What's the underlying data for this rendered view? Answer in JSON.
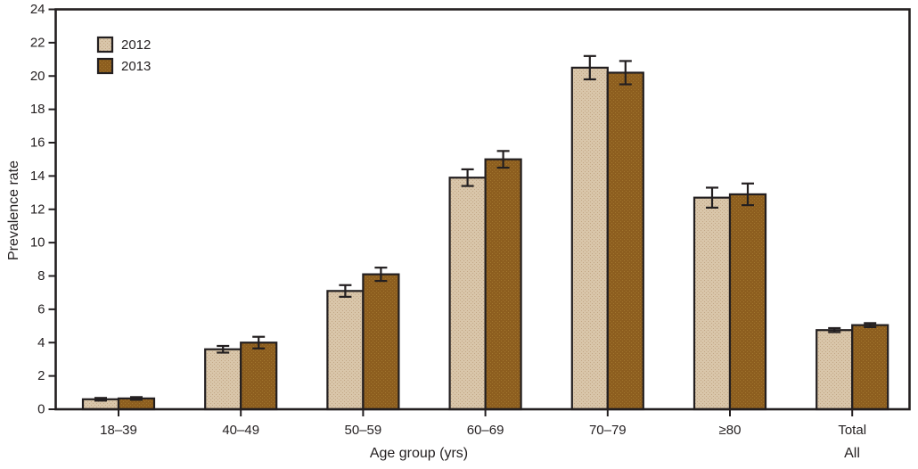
{
  "figure": {
    "background": "#ffffff",
    "ink_color": "#231f20"
  },
  "chart_data": {
    "type": "bar",
    "title": "",
    "xlabel": "Age group (yrs)",
    "ylabel": "Prevalence rate",
    "ylim": [
      0,
      24
    ],
    "ytick_step": 2,
    "grid": false,
    "error_bars": true,
    "legend_position": "top-left",
    "categories": [
      "18–39",
      "40–49",
      "50–59",
      "60–69",
      "70–79",
      "≥80",
      "Total"
    ],
    "total_column_sublabel": "All",
    "legend_entries": [
      "2012",
      "2013"
    ],
    "series": [
      {
        "name": "2012",
        "color": "#d9c6aa",
        "texture_dot": "#c2a685",
        "values": [
          0.6,
          3.6,
          7.1,
          13.9,
          20.5,
          12.7,
          4.75
        ],
        "errors": [
          0.08,
          0.2,
          0.35,
          0.5,
          0.7,
          0.6,
          0.12
        ]
      },
      {
        "name": "2013",
        "color": "#8d5e1f",
        "texture_dot": "#a1762e",
        "values": [
          0.65,
          4.0,
          8.1,
          15.0,
          20.2,
          12.9,
          5.05
        ],
        "errors": [
          0.08,
          0.35,
          0.4,
          0.5,
          0.7,
          0.65,
          0.12
        ]
      }
    ]
  }
}
